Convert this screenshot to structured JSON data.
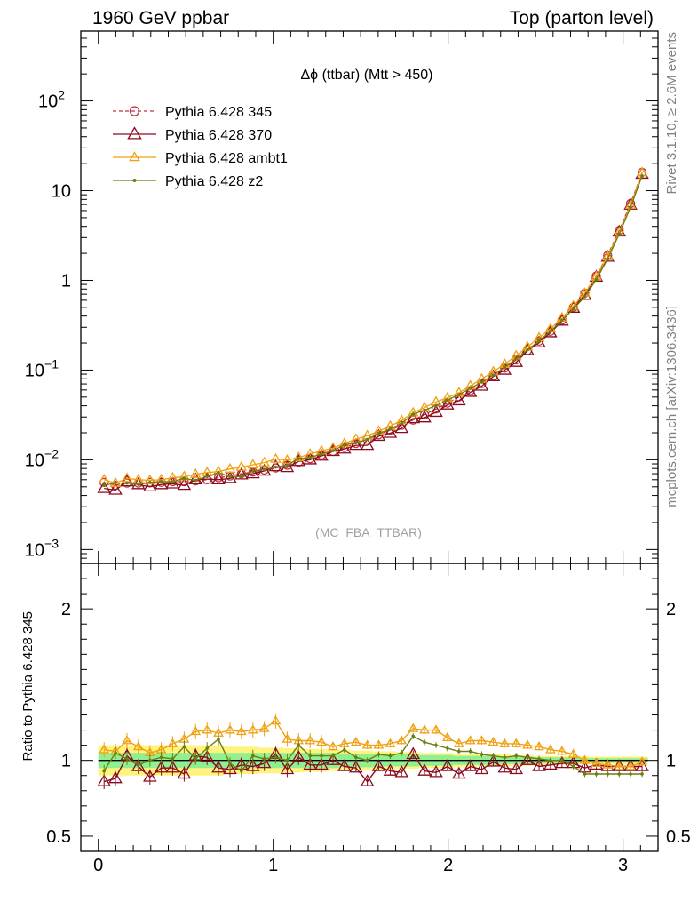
{
  "header": {
    "left": "1960 GeV ppbar",
    "right": "Top (parton level)"
  },
  "side_labels": {
    "rivet": "Rivet 3.1.10, ≥ 2.6M events",
    "mcplots": "mcplots.cern.ch [arXiv:1306.3436]"
  },
  "analysis_tag": "(MC_FBA_TTBAR)",
  "colors": {
    "p345": "#c03040",
    "p370": "#8b0a1e",
    "ambt1": "#f0a010",
    "z2": "#6b7f10",
    "band_inner": "#90f090",
    "band_outer": "#fff380"
  },
  "chart_data": [
    {
      "type": "line",
      "panel": "main",
      "title": "Δϕ (ttbar) (Mtt > 450)",
      "xlabel": "",
      "ylabel": "",
      "xlim": [
        -0.1,
        3.2
      ],
      "ylim": [
        0.0007,
        600
      ],
      "yscale": "log",
      "y_ticks": [
        "10^-3",
        "10^-2",
        "10^-1",
        "1",
        "10",
        "10^2"
      ],
      "legend_position": "top-left",
      "x": [
        0.033,
        0.098,
        0.164,
        0.229,
        0.295,
        0.36,
        0.425,
        0.491,
        0.556,
        0.622,
        0.687,
        0.753,
        0.818,
        0.884,
        0.949,
        1.014,
        1.08,
        1.145,
        1.211,
        1.276,
        1.342,
        1.407,
        1.473,
        1.538,
        1.603,
        1.669,
        1.734,
        1.8,
        1.865,
        1.931,
        1.996,
        2.062,
        2.127,
        2.192,
        2.258,
        2.323,
        2.389,
        2.454,
        2.52,
        2.585,
        2.651,
        2.716,
        2.781,
        2.847,
        2.912,
        2.978,
        3.043,
        3.109
      ],
      "series": [
        {
          "name": "Pythia 6.428 345",
          "marker": "circle",
          "dashed": true,
          "values": [
            0.0056,
            0.0052,
            0.0055,
            0.0055,
            0.0056,
            0.0056,
            0.0057,
            0.0057,
            0.0058,
            0.006,
            0.0063,
            0.0066,
            0.007,
            0.0073,
            0.0077,
            0.0081,
            0.0087,
            0.0094,
            0.0103,
            0.0113,
            0.0124,
            0.0137,
            0.0152,
            0.0169,
            0.019,
            0.0214,
            0.0243,
            0.0277,
            0.0318,
            0.0368,
            0.0428,
            0.0502,
            0.059,
            0.0705,
            0.0855,
            0.105,
            0.13,
            0.165,
            0.21,
            0.27,
            0.36,
            0.5,
            0.72,
            1.12,
            1.9,
            3.6,
            7.2,
            16.0
          ]
        },
        {
          "name": "Pythia 6.428 370",
          "marker": "triangle",
          "dashed": false,
          "values": [
            0.0048,
            0.0046,
            0.0057,
            0.0053,
            0.005,
            0.0053,
            0.0054,
            0.0052,
            0.006,
            0.0061,
            0.006,
            0.0062,
            0.0068,
            0.007,
            0.0075,
            0.0084,
            0.0082,
            0.0096,
            0.01,
            0.011,
            0.0124,
            0.0132,
            0.0145,
            0.0145,
            0.0183,
            0.0198,
            0.0224,
            0.0288,
            0.0294,
            0.0339,
            0.0409,
            0.0456,
            0.0566,
            0.0663,
            0.0846,
            0.0998,
            0.1222,
            0.1649,
            0.2014,
            0.2609,
            0.3522,
            0.49,
            0.6822,
            1.0877,
            1.8148,
            3.4704,
            6.9235,
            15.3
          ]
        },
        {
          "name": "Pythia 6.428 ambt1",
          "marker": "triangle",
          "dashed": false,
          "values": [
            0.006,
            0.0055,
            0.0062,
            0.006,
            0.0059,
            0.006,
            0.0063,
            0.0065,
            0.0069,
            0.0072,
            0.0074,
            0.0079,
            0.0083,
            0.0088,
            0.0093,
            0.0102,
            0.0099,
            0.0106,
            0.0116,
            0.0126,
            0.0135,
            0.0152,
            0.017,
            0.0186,
            0.0209,
            0.0237,
            0.0275,
            0.0335,
            0.0382,
            0.0442,
            0.0491,
            0.0559,
            0.0667,
            0.0797,
            0.0958,
            0.1165,
            0.1443,
            0.1815,
            0.2289,
            0.2887,
            0.3816,
            0.52,
            0.72,
            1.1,
            1.85,
            3.45,
            6.9,
            15.9
          ]
        },
        {
          "name": "Pythia 6.428 z2",
          "marker": "dot",
          "dashed": false,
          "values": [
            0.0052,
            0.0055,
            0.0055,
            0.0053,
            0.0056,
            0.0057,
            0.0057,
            0.0062,
            0.0059,
            0.0065,
            0.0072,
            0.0065,
            0.0065,
            0.0075,
            0.0078,
            0.0083,
            0.0087,
            0.0103,
            0.0106,
            0.0116,
            0.0127,
            0.0146,
            0.0155,
            0.0169,
            0.0197,
            0.022,
            0.0255,
            0.0322,
            0.0357,
            0.0403,
            0.0463,
            0.0532,
            0.0625,
            0.0733,
            0.0881,
            0.1071,
            0.1339,
            0.1683,
            0.2121,
            0.27,
            0.36,
            0.48,
            0.655,
            1.02,
            1.73,
            3.28,
            6.55,
            14.6
          ]
        }
      ]
    },
    {
      "type": "line",
      "panel": "ratio",
      "ylabel": "Ratio to Pythia 6.428 345",
      "xlabel": "",
      "xlim": [
        -0.1,
        3.2
      ],
      "ylim": [
        0.4,
        2.3
      ],
      "x_ticks": [
        0,
        1,
        2,
        3
      ],
      "y_ticks": [
        0.5,
        1,
        2
      ],
      "x": [
        0.033,
        0.098,
        0.164,
        0.229,
        0.295,
        0.36,
        0.425,
        0.491,
        0.556,
        0.622,
        0.687,
        0.753,
        0.818,
        0.884,
        0.949,
        1.014,
        1.08,
        1.145,
        1.211,
        1.276,
        1.342,
        1.407,
        1.473,
        1.538,
        1.603,
        1.669,
        1.734,
        1.8,
        1.865,
        1.931,
        1.996,
        2.062,
        2.127,
        2.192,
        2.258,
        2.323,
        2.389,
        2.454,
        2.52,
        2.585,
        2.651,
        2.716,
        2.781,
        2.847,
        2.912,
        2.978,
        3.043,
        3.109
      ],
      "series": [
        {
          "name": "Pythia 6.428 370",
          "values": [
            0.86,
            0.88,
            1.03,
            0.96,
            0.89,
            0.95,
            0.95,
            0.91,
            1.03,
            1.02,
            0.95,
            0.94,
            0.97,
            0.96,
            0.98,
            1.04,
            0.94,
            1.02,
            0.97,
            0.97,
            1.0,
            0.96,
            0.95,
            0.86,
            0.96,
            0.93,
            0.92,
            1.04,
            0.93,
            0.92,
            0.96,
            0.91,
            0.96,
            0.94,
            0.99,
            0.95,
            0.94,
            1.0,
            0.96,
            0.97,
            0.98,
            0.98,
            0.95,
            0.97,
            0.96,
            0.96,
            0.96,
            0.96
          ]
        },
        {
          "name": "Pythia 6.428 ambt1",
          "values": [
            1.07,
            1.06,
            1.13,
            1.09,
            1.05,
            1.07,
            1.11,
            1.14,
            1.19,
            1.2,
            1.18,
            1.2,
            1.19,
            1.2,
            1.21,
            1.26,
            1.14,
            1.13,
            1.13,
            1.12,
            1.09,
            1.11,
            1.12,
            1.1,
            1.1,
            1.11,
            1.13,
            1.21,
            1.2,
            1.2,
            1.15,
            1.11,
            1.13,
            1.13,
            1.12,
            1.11,
            1.11,
            1.1,
            1.09,
            1.07,
            1.06,
            1.04,
            1.0,
            0.98,
            0.97,
            0.96,
            0.96,
            0.99
          ]
        },
        {
          "name": "Pythia 6.428 z2",
          "values": [
            0.93,
            1.05,
            1.01,
            0.97,
            1.0,
            1.02,
            1.01,
            1.09,
            1.01,
            1.08,
            1.14,
            0.98,
            0.93,
            1.03,
            1.01,
            1.02,
            1.0,
            1.1,
            1.03,
            1.03,
            1.03,
            1.07,
            1.02,
            1.0,
            1.04,
            1.03,
            1.05,
            1.16,
            1.12,
            1.1,
            1.08,
            1.06,
            1.06,
            1.04,
            1.03,
            1.02,
            1.03,
            1.02,
            1.01,
            1.0,
            1.0,
            0.96,
            0.91,
            0.91,
            0.91,
            0.91,
            0.91,
            0.91
          ]
        }
      ],
      "band_green_halfwidth": [
        0.05,
        0.05,
        0.05,
        0.05,
        0.05,
        0.05,
        0.05,
        0.05,
        0.05,
        0.05,
        0.05,
        0.05,
        0.05,
        0.05,
        0.05,
        0.05,
        0.05,
        0.05,
        0.05,
        0.05,
        0.05,
        0.045,
        0.045,
        0.045,
        0.04,
        0.04,
        0.04,
        0.04,
        0.035,
        0.035,
        0.035,
        0.03,
        0.03,
        0.03,
        0.03,
        0.025,
        0.025,
        0.025,
        0.02,
        0.02,
        0.02,
        0.02,
        0.015,
        0.015,
        0.015,
        0.015,
        0.015,
        0.015
      ],
      "band_yellow_halfwidth": [
        0.1,
        0.1,
        0.1,
        0.1,
        0.1,
        0.1,
        0.1,
        0.1,
        0.1,
        0.1,
        0.1,
        0.09,
        0.09,
        0.09,
        0.085,
        0.085,
        0.08,
        0.08,
        0.075,
        0.075,
        0.07,
        0.07,
        0.065,
        0.065,
        0.06,
        0.06,
        0.055,
        0.055,
        0.05,
        0.05,
        0.05,
        0.045,
        0.045,
        0.04,
        0.04,
        0.04,
        0.035,
        0.035,
        0.03,
        0.03,
        0.03,
        0.03,
        0.025,
        0.025,
        0.025,
        0.025,
        0.025,
        0.025
      ]
    }
  ]
}
